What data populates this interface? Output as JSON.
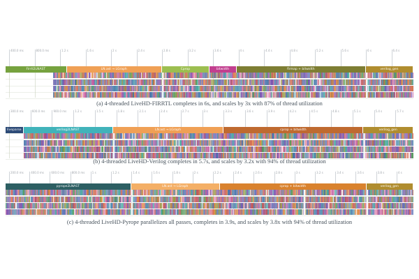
{
  "styles": {
    "background": "#ffffff",
    "caption_color": "#47525c",
    "ruler_label_color": "#a2a7ad",
    "ruler_line_color": "#cfd3d8",
    "grid_color": "#dfe4d8",
    "segment_separator": "#ffffff",
    "strip_palette": [
      "#4e8fb0",
      "#5b6fb5",
      "#8a5fae",
      "#c25a9e",
      "#e08bb4",
      "#e08840",
      "#c05555",
      "#55985a",
      "#9a9a45",
      "#6a82a5",
      "#b5763f",
      "#45a8a0",
      "#7a52b0",
      "#d46a52",
      "#3f6fa8",
      "#a84f7a"
    ]
  },
  "chart_data": {
    "type": "gantt",
    "unit": "seconds",
    "description": "Per-thread execution timelines (4 threads per flow); top track shows labeled compiler passes, lower strips show fine-grained parallel tasks.",
    "panels": [
      {
        "id": "a",
        "flow": "LiveHD-FIRRTL",
        "caption": "(a) 4-threaded LiveHD-FIRRTL  completes in 6s, and scales by 3x with 87% of thread utilization",
        "total_s": 6.0,
        "ticks": [
          "400.0 ms",
          "800.0 ms",
          "1.2 s",
          "1.6 s",
          "2 s",
          "2.4 s",
          "2.8 s",
          "3.2 s",
          "3.6 s",
          "4 s",
          "4.4 s",
          "4.8 s",
          "5.2 s",
          "5.6 s",
          "6 s",
          "6.4 s"
        ],
        "passes": [
          {
            "label": "Firrtl2LNAST",
            "start_s": 0,
            "end_s": 0.9,
            "color": "#76a23e"
          },
          {
            "label": "LN.ast → LGraph",
            "start_s": 0.9,
            "end_s": 2.3,
            "color": "#f0a055"
          },
          {
            "label": "Cprop",
            "start_s": 2.3,
            "end_s": 3.0,
            "color": "#9cbe50"
          },
          {
            "label": "bitwidth",
            "start_s": 3.0,
            "end_s": 3.4,
            "color": "#c23f8f"
          },
          {
            "label": "firmap + bitwidth",
            "start_s": 3.4,
            "end_s": 5.3,
            "color": "#7e7e33"
          },
          {
            "label": "verilog_gen",
            "start_s": 5.3,
            "end_s": 6.0,
            "color": "#b08d2f"
          }
        ],
        "threads": {
          "count": 4,
          "start_s": 0.7,
          "gaps_s": [
            2.3,
            5.3
          ],
          "seed": 11
        }
      },
      {
        "id": "b",
        "flow": "LiveHD-Verilog",
        "caption": "(b) 4-threaded LiveHD-Verilog  completes in 5.7s, and scales by 3.2x with 94% of thread utilization",
        "total_s": 5.7,
        "ticks": [
          "300.0 ms",
          "600.0 ms",
          "900.0 ms",
          "1.2 s",
          "1.5 s",
          "1.8 s",
          "2.1 s",
          "2.4 s",
          "2.7 s",
          "3 s",
          "3.3 s",
          "3.6 s",
          "3.9 s",
          "4.2 s",
          "4.5 s",
          "4.8 s",
          "5.1 s",
          "5.4 s",
          "5.7 s"
        ],
        "passes": [
          {
            "label": "liveparse",
            "start_s": 0,
            "end_s": 0.25,
            "color": "#2d4b77"
          },
          {
            "label": "verilog2LNAST",
            "start_s": 0.25,
            "end_s": 1.5,
            "color": "#41b3ba"
          },
          {
            "label": "LN.ast → LGraph",
            "start_s": 1.5,
            "end_s": 3.05,
            "color": "#f0a055"
          },
          {
            "label": "cprop + bitwidth",
            "start_s": 3.05,
            "end_s": 5.0,
            "color": "#bf6a30"
          },
          {
            "label": "verilog_gen",
            "start_s": 5.0,
            "end_s": 5.7,
            "color": "#b08d2f"
          }
        ],
        "threads": {
          "count": 4,
          "start_s": 0.25,
          "gaps_s": [
            1.5,
            5.0
          ],
          "seed": 29
        }
      },
      {
        "id": "c",
        "flow": "LiveHD-Pyrope",
        "caption": "(c) 4-threaded LiveHD-Pyrope parallelizes all passes, completes in 3.9s, and scales by 3.8x with 94% of thread utilization",
        "total_s": 3.9,
        "ticks": [
          "200.0 ms",
          "400.0 ms",
          "600.0 ms",
          "800.0 ms",
          "1 s",
          "1.2 s",
          "1.4 s",
          "1.6 s",
          "1.8 s",
          "2 s",
          "2.2 s",
          "2.4 s",
          "2.6 s",
          "2.8 s",
          "3 s",
          "3.2 s",
          "3.4 s",
          "3.6 s",
          "3.8 s",
          "4 s"
        ],
        "passes": [
          {
            "label": "pyrope2LNAST",
            "start_s": 0,
            "end_s": 1.2,
            "color": "#2d5f63"
          },
          {
            "label": "LN.ast → LGraph",
            "start_s": 1.2,
            "end_s": 2.05,
            "color": "#f4af66"
          },
          {
            "label": "cprop + bitwidth",
            "start_s": 2.05,
            "end_s": 3.45,
            "color": "#d9822e"
          },
          {
            "label": "verilog_gen",
            "start_s": 3.45,
            "end_s": 3.9,
            "color": "#b08d2f"
          }
        ],
        "threads": {
          "count": 4,
          "start_s": 0,
          "gaps_s": [
            1.2,
            2.85,
            3.45
          ],
          "seed": 47
        }
      }
    ]
  }
}
